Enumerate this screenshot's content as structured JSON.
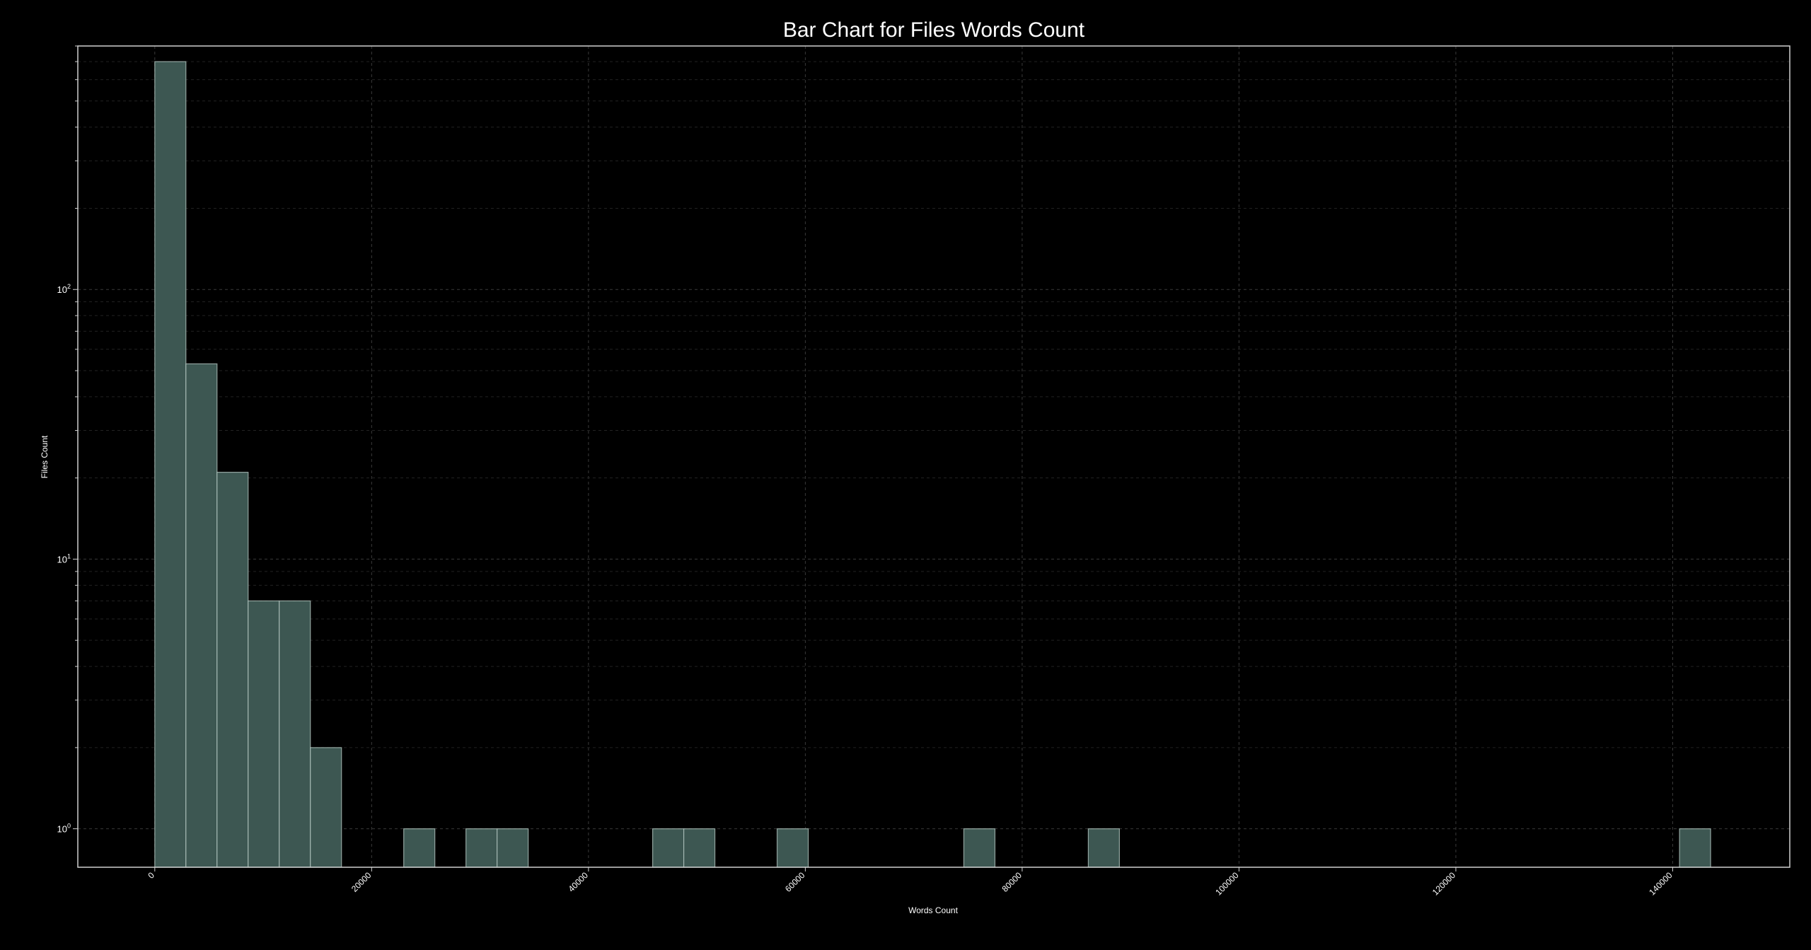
{
  "chart_data": {
    "type": "bar",
    "title": "Bar Chart for Files Words Count",
    "xlabel": "Words Count",
    "ylabel": "Files Count",
    "yscale": "log",
    "ylim": [
      0.72,
      800
    ],
    "xlim": [
      -7100,
      150800
    ],
    "grid": true,
    "bar_color": "#3d5752",
    "bar_edge_color": "#b8cbc6",
    "background": "#000000",
    "bin_width": 2870,
    "x_ticks": [
      0,
      20000,
      40000,
      60000,
      80000,
      100000,
      120000,
      140000
    ],
    "x_tick_labels": [
      "0",
      "20000",
      "40000",
      "60000",
      "80000",
      "100000",
      "120000",
      "140000"
    ],
    "y_ticks": [
      {
        "base": "10",
        "exp": "0",
        "value": 1
      },
      {
        "base": "10",
        "exp": "1",
        "value": 10
      },
      {
        "base": "10",
        "exp": "2",
        "value": 100
      }
    ],
    "bins": [
      {
        "x": 0,
        "count": 700
      },
      {
        "x": 2870,
        "count": 53
      },
      {
        "x": 5740,
        "count": 21
      },
      {
        "x": 8610,
        "count": 7
      },
      {
        "x": 11480,
        "count": 7
      },
      {
        "x": 14350,
        "count": 2
      },
      {
        "x": 22960,
        "count": 1
      },
      {
        "x": 28700,
        "count": 1
      },
      {
        "x": 31570,
        "count": 1
      },
      {
        "x": 45920,
        "count": 1
      },
      {
        "x": 48790,
        "count": 1
      },
      {
        "x": 57400,
        "count": 1
      },
      {
        "x": 74620,
        "count": 1
      },
      {
        "x": 86100,
        "count": 1
      },
      {
        "x": 140630,
        "count": 1
      }
    ]
  }
}
